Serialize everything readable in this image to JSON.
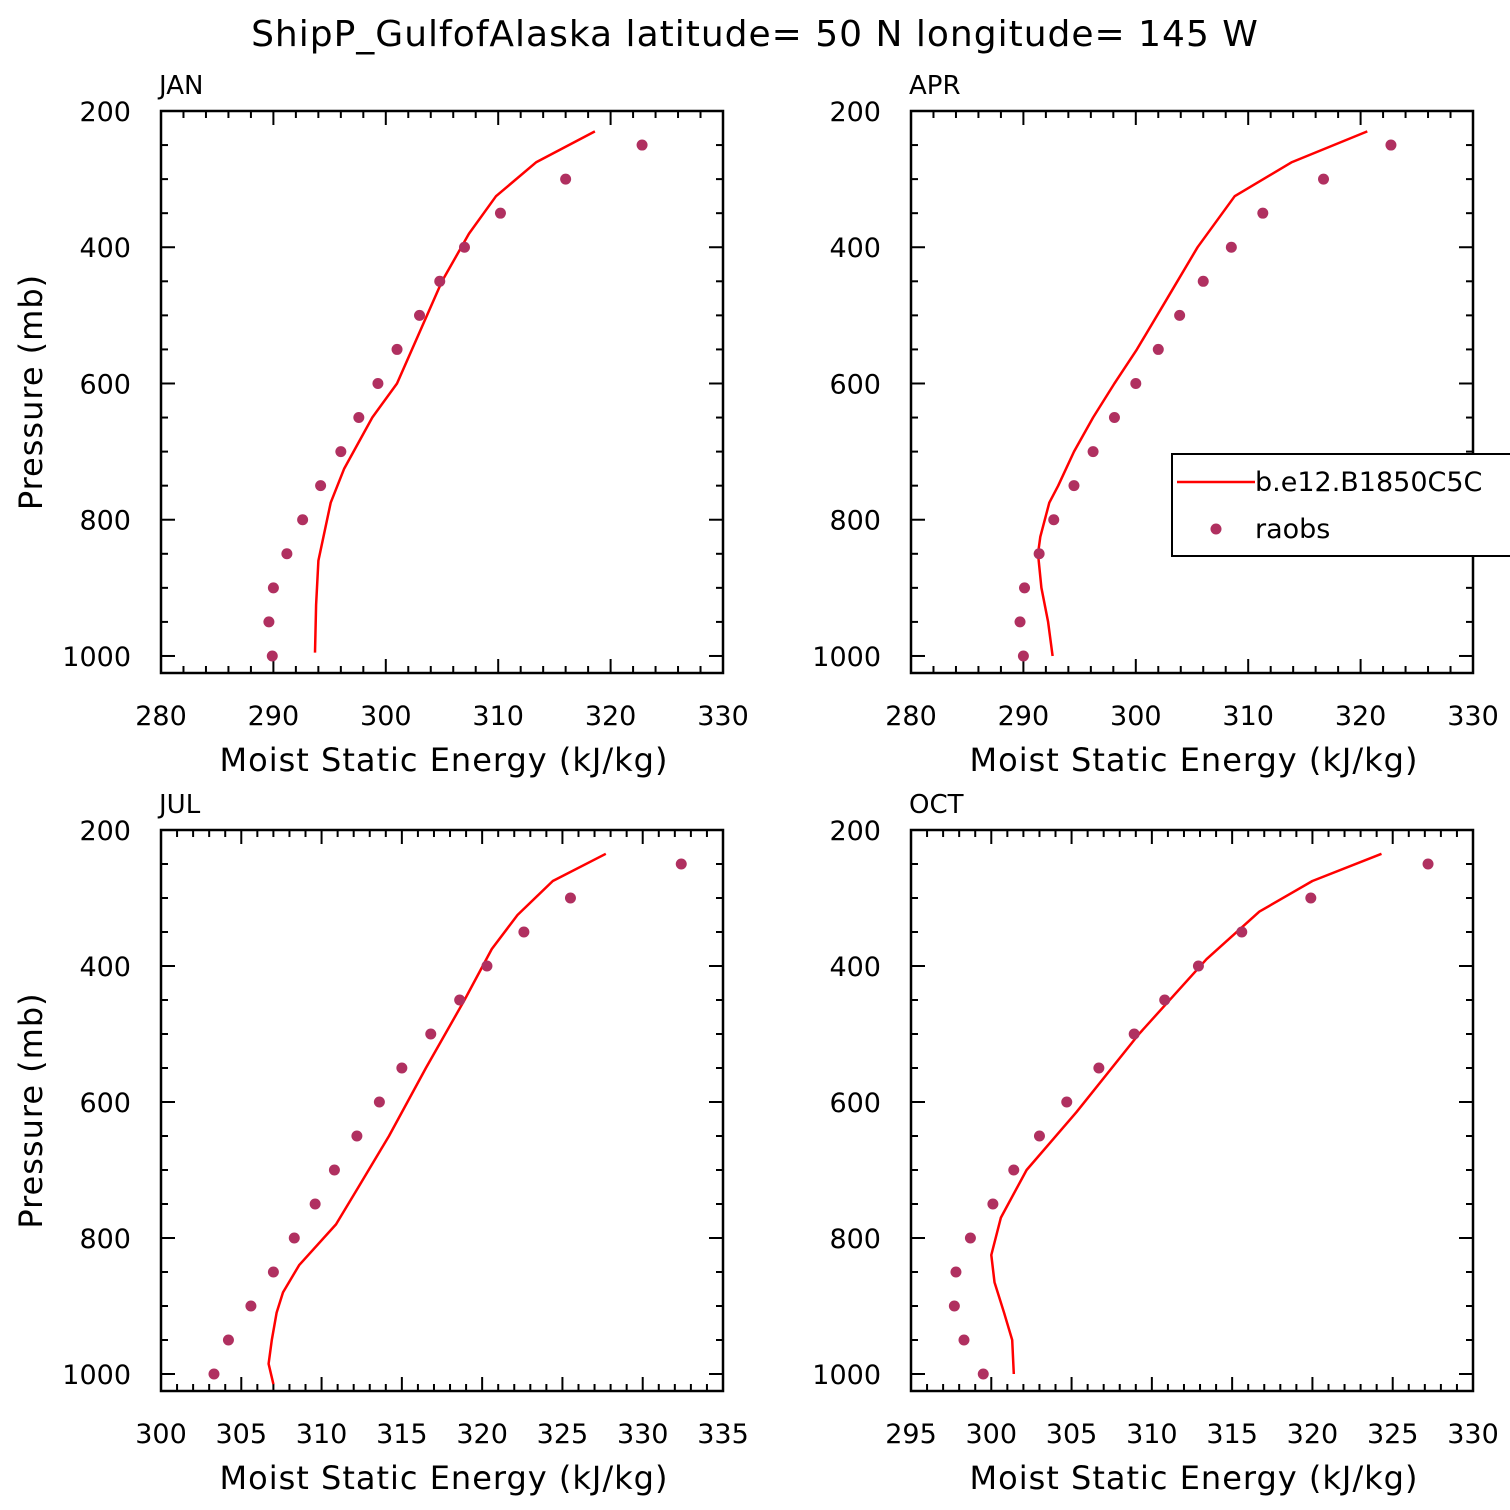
{
  "title": "ShipP_GulfofAlaska  latitude= 50 N longitude= 145 W",
  "colors": {
    "model": "#ff0000",
    "obs": "#b03060",
    "axis": "#000000",
    "background": "#ffffff"
  },
  "legend": {
    "model_label": "b.e12.B1850C5C",
    "obs_label": "raobs",
    "placement": "right side of APR panel, clipped at figure edge"
  },
  "chart_data": [
    {
      "type": "line+scatter",
      "panel": "JAN",
      "xlabel": "Moist Static Energy (kJ/kg)",
      "ylabel": "Pressure (mb)",
      "xlim": [
        280,
        330
      ],
      "xticks": [
        280,
        290,
        300,
        310,
        320,
        330
      ],
      "xtick_labels": [
        "280",
        "290",
        "300",
        "310",
        "320",
        "330"
      ],
      "ylim": [
        1025,
        200
      ],
      "yticks": [
        200,
        400,
        600,
        800,
        1000
      ],
      "ytick_labels": [
        "200",
        "400",
        "600",
        "800",
        "1000"
      ],
      "grid": false,
      "series": [
        {
          "kind": "line",
          "x": [
            293.7,
            293.8,
            294.0,
            295.1,
            296.3,
            298.8,
            301.0,
            303.0,
            305.0,
            307.4,
            309.8,
            313.4,
            318.6
          ],
          "y": [
            995,
            925,
            860,
            775,
            725,
            650,
            600,
            525,
            450,
            380,
            325,
            275,
            230
          ]
        },
        {
          "kind": "scatter",
          "x": [
            289.9,
            289.6,
            290.0,
            291.2,
            292.6,
            294.2,
            296.0,
            297.6,
            299.3,
            301.0,
            303.0,
            304.8,
            307.0,
            310.2,
            316.0,
            322.8
          ],
          "y": [
            1000,
            950,
            900,
            850,
            800,
            750,
            700,
            650,
            600,
            550,
            500,
            450,
            400,
            350,
            300,
            250
          ]
        }
      ]
    },
    {
      "type": "line+scatter",
      "panel": "APR",
      "xlabel": "Moist Static Energy (kJ/kg)",
      "ylabel": "Pressure (mb)",
      "xlim": [
        280,
        330
      ],
      "xticks": [
        280,
        290,
        300,
        310,
        320,
        330
      ],
      "xtick_labels": [
        "280",
        "290",
        "300",
        "310",
        "320",
        "330"
      ],
      "ylim": [
        1025,
        200
      ],
      "yticks": [
        200,
        400,
        600,
        800,
        1000
      ],
      "ytick_labels": [
        "200",
        "400",
        "600",
        "800",
        "1000"
      ],
      "grid": false,
      "series": [
        {
          "kind": "line",
          "x": [
            292.6,
            292.2,
            291.6,
            291.3,
            291.5,
            292.3,
            293.1,
            294.5,
            296.2,
            298.1,
            300.1,
            302.8,
            305.5,
            308.8,
            313.9,
            320.6
          ],
          "y": [
            1000,
            950,
            900,
            850,
            825,
            775,
            750,
            700,
            650,
            600,
            550,
            475,
            400,
            325,
            275,
            230
          ]
        },
        {
          "kind": "scatter",
          "x": [
            290.0,
            289.7,
            290.1,
            291.4,
            292.7,
            294.5,
            296.2,
            298.1,
            300.0,
            302.0,
            303.9,
            306.0,
            308.5,
            311.3,
            316.7,
            322.7
          ],
          "y": [
            1000,
            950,
            900,
            850,
            800,
            750,
            700,
            650,
            600,
            550,
            500,
            450,
            400,
            350,
            300,
            250
          ]
        }
      ]
    },
    {
      "type": "line+scatter",
      "panel": "JUL",
      "xlabel": "Moist Static Energy (kJ/kg)",
      "ylabel": "Pressure (mb)",
      "xlim": [
        300,
        335
      ],
      "xticks": [
        300,
        305,
        310,
        315,
        320,
        325,
        330,
        335
      ],
      "xtick_labels": [
        "300",
        "305",
        "310",
        "315",
        "320",
        "325",
        "330",
        "335"
      ],
      "ylim": [
        1025,
        200
      ],
      "yticks": [
        200,
        400,
        600,
        800,
        1000
      ],
      "ytick_labels": [
        "200",
        "400",
        "600",
        "800",
        "1000"
      ],
      "grid": false,
      "series": [
        {
          "kind": "line",
          "x": [
            307.0,
            306.7,
            306.9,
            307.2,
            307.6,
            308.6,
            310.9,
            312.3,
            314.2,
            316.5,
            318.9,
            320.6,
            322.2,
            324.4,
            327.7
          ],
          "y": [
            1015,
            985,
            950,
            910,
            880,
            840,
            780,
            725,
            650,
            550,
            450,
            375,
            325,
            275,
            235
          ]
        },
        {
          "kind": "scatter",
          "x": [
            303.3,
            304.2,
            305.6,
            307.0,
            308.3,
            309.6,
            310.8,
            312.2,
            313.6,
            315.0,
            316.8,
            318.6,
            320.3,
            322.6,
            325.5,
            332.4
          ],
          "y": [
            1000,
            950,
            900,
            850,
            800,
            750,
            700,
            650,
            600,
            550,
            500,
            450,
            400,
            350,
            300,
            250
          ]
        }
      ]
    },
    {
      "type": "line+scatter",
      "panel": "OCT",
      "xlabel": "Moist Static Energy (kJ/kg)",
      "ylabel": "Pressure (mb)",
      "xlim": [
        295,
        330
      ],
      "xticks": [
        295,
        300,
        305,
        310,
        315,
        320,
        325,
        330
      ],
      "xtick_labels": [
        "295",
        "300",
        "305",
        "310",
        "315",
        "320",
        "325",
        "330"
      ],
      "ylim": [
        1025,
        200
      ],
      "yticks": [
        200,
        400,
        600,
        800,
        1000
      ],
      "ytick_labels": [
        "200",
        "400",
        "600",
        "800",
        "1000"
      ],
      "grid": false,
      "series": [
        {
          "kind": "line",
          "x": [
            301.4,
            301.3,
            300.8,
            300.2,
            300.0,
            300.6,
            302.2,
            305.3,
            309.2,
            313.4,
            316.7,
            320.0,
            324.3
          ],
          "y": [
            1000,
            950,
            910,
            865,
            825,
            770,
            700,
            615,
            500,
            390,
            320,
            275,
            235
          ]
        },
        {
          "kind": "scatter",
          "x": [
            299.5,
            298.3,
            297.7,
            297.8,
            298.7,
            300.1,
            301.4,
            303.0,
            304.7,
            306.7,
            308.9,
            310.8,
            312.9,
            315.6,
            319.9,
            327.2
          ],
          "y": [
            1000,
            950,
            900,
            850,
            800,
            750,
            700,
            650,
            600,
            550,
            500,
            450,
            400,
            350,
            300,
            250
          ]
        }
      ]
    }
  ]
}
